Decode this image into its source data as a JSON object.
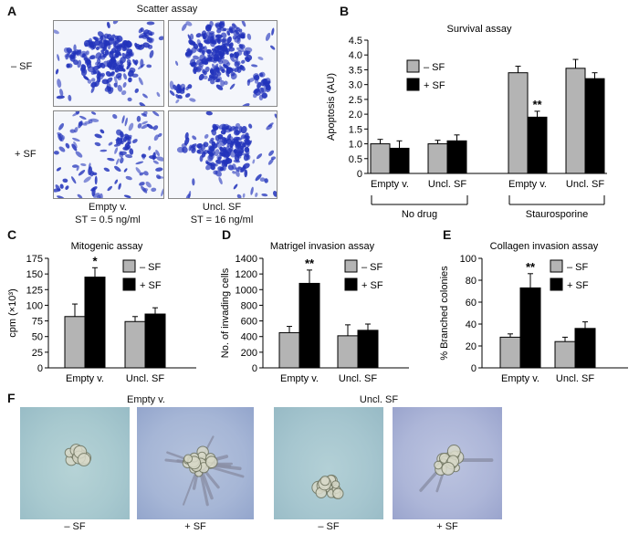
{
  "panels": {
    "A": {
      "label": "A",
      "title": "Scatter assay",
      "row_labels": [
        "– SF",
        "+ SF"
      ],
      "columns": [
        {
          "name": "Empty v.",
          "note": "ST = 0.5 ng/ml"
        },
        {
          "name": "Uncl. SF",
          "note": "ST = 16 ng/ml"
        }
      ]
    },
    "B": {
      "label": "B"
    },
    "C": {
      "label": "C"
    },
    "D": {
      "label": "D"
    },
    "E": {
      "label": "E"
    },
    "F": {
      "label": "F",
      "group_labels": [
        "Empty v.",
        "Uncl. SF"
      ],
      "photo_labels": [
        "– SF",
        "+ SF",
        "– SF",
        "+ SF"
      ]
    }
  },
  "colors": {
    "minus_sf": "#b4b4b4",
    "plus_sf": "#000000",
    "stain": "#2233bb"
  },
  "chart_data": [
    {
      "id": "B",
      "type": "bar",
      "title": "Survival assay",
      "ylabel": "Apoptosis (AU)",
      "ylim": [
        0,
        4.5
      ],
      "yticks": [
        "0",
        "0.5",
        "1.0",
        "1.5",
        "2.0",
        "2.5",
        "3.0",
        "3.5",
        "4.0",
        "4.5"
      ],
      "categories": [
        "Empty v.",
        "Uncl. SF",
        "Empty v.",
        "Uncl. SF"
      ],
      "groups": [
        {
          "label": "No drug"
        },
        {
          "label": "Staurosporine"
        }
      ],
      "series": [
        {
          "name": "– SF",
          "values": [
            1.0,
            1.0,
            3.4,
            3.55
          ],
          "errors": [
            0.15,
            0.12,
            0.22,
            0.3
          ]
        },
        {
          "name": "+ SF",
          "values": [
            0.85,
            1.1,
            1.9,
            3.2
          ],
          "errors": [
            0.25,
            0.2,
            0.2,
            0.2
          ]
        }
      ],
      "annotations": [
        {
          "category": 2,
          "series": 1,
          "text": "**"
        }
      ],
      "legend": "top-left"
    },
    {
      "id": "C",
      "type": "bar",
      "title": "Mitogenic assay",
      "ylabel": "cpm (×10³)",
      "ylim": [
        0,
        175
      ],
      "yticks": [
        "0",
        "25",
        "50",
        "75",
        "100",
        "125",
        "150",
        "175"
      ],
      "categories": [
        "Empty v.",
        "Uncl. SF"
      ],
      "series": [
        {
          "name": "– SF",
          "values": [
            82,
            74
          ],
          "errors": [
            20,
            8
          ]
        },
        {
          "name": "+ SF",
          "values": [
            145,
            86
          ],
          "errors": [
            15,
            10
          ]
        }
      ],
      "annotations": [
        {
          "category": 0,
          "series": 1,
          "text": "*"
        }
      ],
      "legend": "top-right"
    },
    {
      "id": "D",
      "type": "bar",
      "title": "Matrigel invasion assay",
      "ylabel": "No. of invading cells",
      "ylim": [
        0,
        1400
      ],
      "yticks": [
        "0",
        "200",
        "400",
        "600",
        "800",
        "1000",
        "1200",
        "1400"
      ],
      "categories": [
        "Empty v.",
        "Uncl. SF"
      ],
      "series": [
        {
          "name": "– SF",
          "values": [
            450,
            410
          ],
          "errors": [
            80,
            140
          ]
        },
        {
          "name": "+ SF",
          "values": [
            1080,
            480
          ],
          "errors": [
            170,
            80
          ]
        }
      ],
      "annotations": [
        {
          "category": 0,
          "series": 1,
          "text": "**"
        }
      ],
      "legend": "top-right"
    },
    {
      "id": "E",
      "type": "bar",
      "title": "Collagen invasion assay",
      "ylabel": "% Branched colonies",
      "ylim": [
        0,
        100
      ],
      "yticks": [
        "0",
        "20",
        "40",
        "60",
        "80",
        "100"
      ],
      "categories": [
        "Empty v.",
        "Uncl. SF"
      ],
      "series": [
        {
          "name": "– SF",
          "values": [
            28,
            24
          ],
          "errors": [
            3,
            4
          ]
        },
        {
          "name": "+ SF",
          "values": [
            73,
            36
          ],
          "errors": [
            13,
            6
          ]
        }
      ],
      "annotations": [
        {
          "category": 0,
          "series": 1,
          "text": "**"
        }
      ],
      "legend": "top-right"
    }
  ]
}
